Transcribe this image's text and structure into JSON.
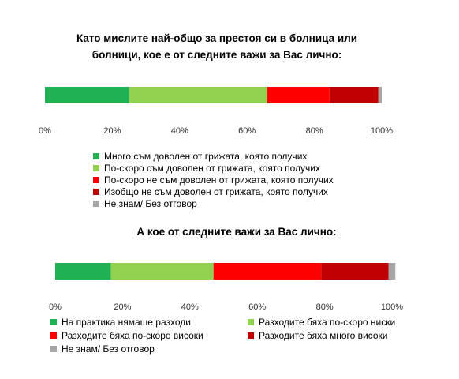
{
  "colors": {
    "very_satisfied": "#1fb154",
    "rather_satisfied": "#92d050",
    "rather_dissatisfied": "#ff0000",
    "very_dissatisfied": "#c00000",
    "dont_know": "#a6a6a6"
  },
  "chart_data": [
    {
      "type": "bar",
      "orientation": "horizontal-stacked-100",
      "title_lines": [
        "Като мислите най-общо за престоя си в болница или",
        "болници, кое е от следните важи за Вас лично:"
      ],
      "categories": [
        ""
      ],
      "series": [
        {
          "name": "Много съм доволен от грижата, която получих",
          "values": [
            25
          ],
          "color_key": "very_satisfied"
        },
        {
          "name": "По-скоро съм доволен от грижата, която получих",
          "values": [
            41
          ],
          "color_key": "rather_satisfied"
        },
        {
          "name": "По-скоро не съм доволен от грижата, която получих",
          "values": [
            18.5
          ],
          "color_key": "rather_dissatisfied"
        },
        {
          "name": "Изобщо не съм доволен от грижата, която получих",
          "values": [
            14.5
          ],
          "color_key": "very_dissatisfied"
        },
        {
          "name": "Не знам/ Без отговор",
          "values": [
            1
          ],
          "color_key": "dont_know"
        }
      ],
      "xlim": [
        0,
        100
      ],
      "xticks": [
        "0%",
        "20%",
        "40%",
        "60%",
        "80%",
        "100%"
      ],
      "grid": false,
      "legend_position": "below, single column"
    },
    {
      "type": "bar",
      "orientation": "horizontal-stacked-100",
      "title_lines": [
        "А кое от следните важи за Вас лично:"
      ],
      "categories": [
        ""
      ],
      "series": [
        {
          "name": "На практика нямаше разходи",
          "values": [
            16.5
          ],
          "color_key": "very_satisfied"
        },
        {
          "name": "Разходите бяха по-скоро ниски",
          "values": [
            30.5
          ],
          "color_key": "rather_satisfied"
        },
        {
          "name": "Разходите бяха по-скоро високи",
          "values": [
            32
          ],
          "color_key": "rather_dissatisfied"
        },
        {
          "name": "Разходите бяха много високи",
          "values": [
            20
          ],
          "color_key": "very_dissatisfied"
        },
        {
          "name": "Не знам/ Без отговор",
          "values": [
            2
          ],
          "color_key": "dont_know"
        }
      ],
      "xlim": [
        0,
        100
      ],
      "xticks": [
        "0%",
        "20%",
        "40%",
        "60%",
        "80%",
        "100%"
      ],
      "grid": false,
      "legend_position": "below, two columns"
    }
  ]
}
